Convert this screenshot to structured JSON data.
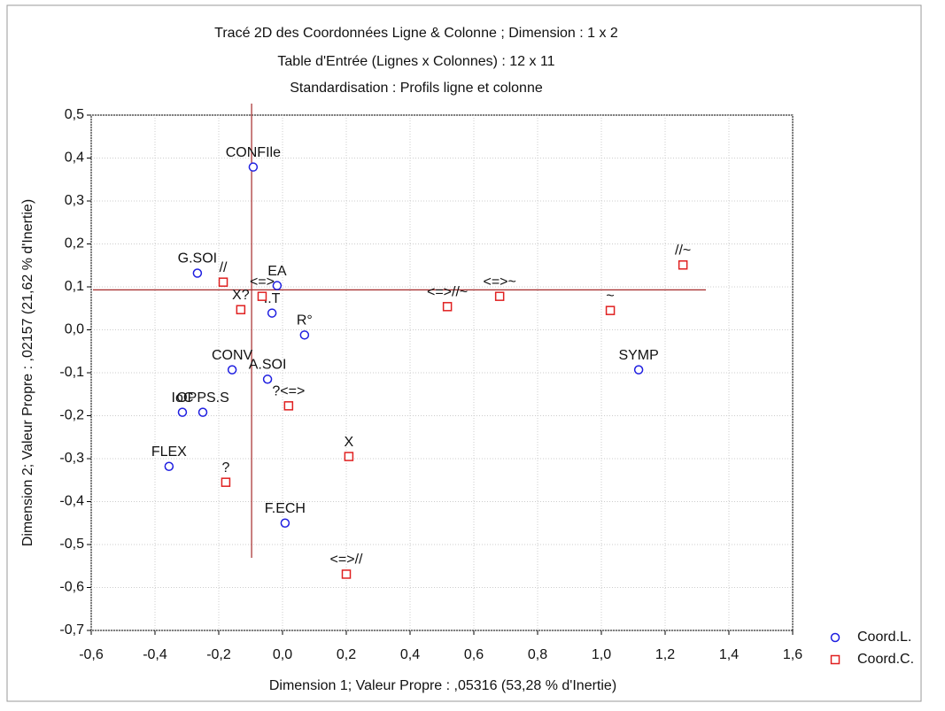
{
  "chart_data": {
    "type": "scatter",
    "title": "Tracé 2D des Coordonnées Ligne & Colonne ; Dimension :  1 x  2",
    "subtitle": [
      "Table d'Entrée (Lignes x Colonnes) : 12 x 11",
      "Standardisation : Profils ligne et colonne"
    ],
    "x_label": "Dimension 1; Valeur Propre : ,05316 (53,28  % d'Inertie)",
    "y_label": "Dimension 2; Valeur Propre : ,02157 (21,62  % d'Inertie)",
    "xlim": [
      -0.6,
      1.6
    ],
    "ylim": [
      -0.7,
      0.5
    ],
    "xticks": [
      {
        "value": -0.6,
        "label": "-0,6"
      },
      {
        "value": -0.4,
        "label": "-0,4"
      },
      {
        "value": -0.2,
        "label": "-0,2"
      },
      {
        "value": 0,
        "label": "0,0"
      },
      {
        "value": 0.2,
        "label": "0,2"
      },
      {
        "value": 0.4,
        "label": "0,4"
      },
      {
        "value": 0.6,
        "label": "0,6"
      },
      {
        "value": 0.8,
        "label": "0,8"
      },
      {
        "value": 1.0,
        "label": "1,0"
      },
      {
        "value": 1.2,
        "label": "1,2"
      },
      {
        "value": 1.4,
        "label": "1,4"
      },
      {
        "value": 1.6,
        "label": "1,6"
      }
    ],
    "yticks": [
      {
        "value": 0.5,
        "label": "0,5"
      },
      {
        "value": 0.4,
        "label": "0,4"
      },
      {
        "value": 0.3,
        "label": "0,3"
      },
      {
        "value": 0.2,
        "label": "0,2"
      },
      {
        "value": 0.1,
        "label": "0,1"
      },
      {
        "value": 0,
        "label": "0,0"
      },
      {
        "value": -0.1,
        "label": "-0,1"
      },
      {
        "value": -0.2,
        "label": "-0,2"
      },
      {
        "value": -0.3,
        "label": "-0,3"
      },
      {
        "value": -0.4,
        "label": "-0,4"
      },
      {
        "value": -0.5,
        "label": "-0,5"
      },
      {
        "value": -0.6,
        "label": "-0,6"
      },
      {
        "value": -0.7,
        "label": "-0,7"
      }
    ],
    "grid": true,
    "reference_lines": {
      "x": -0.097,
      "y": 0.093,
      "color": "#a52a2a"
    },
    "legend": "bottom-right outside",
    "series": [
      {
        "name": "Coord.L.",
        "color": "#1f1fe0",
        "marker": "circle",
        "labels": [
          "CONFIle",
          "G.SOI",
          "EA",
          "I.T",
          "R°",
          "CONV",
          "A.SOI",
          "IoC",
          "OPPS.S",
          "FLEX",
          "F.ECH",
          "SYMP"
        ],
        "x": [
          -0.092,
          -0.267,
          -0.017,
          -0.033,
          0.069,
          -0.158,
          -0.047,
          -0.314,
          -0.25,
          -0.356,
          0.008,
          1.117
        ],
        "values": [
          0.379,
          0.132,
          0.103,
          0.039,
          -0.012,
          -0.093,
          -0.115,
          -0.192,
          -0.192,
          -0.318,
          -0.45,
          -0.093
        ]
      },
      {
        "name": "Coord.C.",
        "color": "#e02020",
        "marker": "square",
        "labels": [
          "//",
          "<=>",
          "X?",
          "<=>//~",
          "<=>~",
          "~",
          "//~",
          "?<=>",
          "X",
          "?",
          "<=>//"
        ],
        "x": [
          -0.186,
          -0.064,
          -0.131,
          0.517,
          0.681,
          1.028,
          1.256,
          0.019,
          0.208,
          -0.178,
          0.2
        ],
        "values": [
          0.111,
          0.078,
          0.047,
          0.054,
          0.078,
          0.045,
          0.151,
          -0.177,
          -0.295,
          -0.355,
          -0.569
        ]
      }
    ]
  }
}
